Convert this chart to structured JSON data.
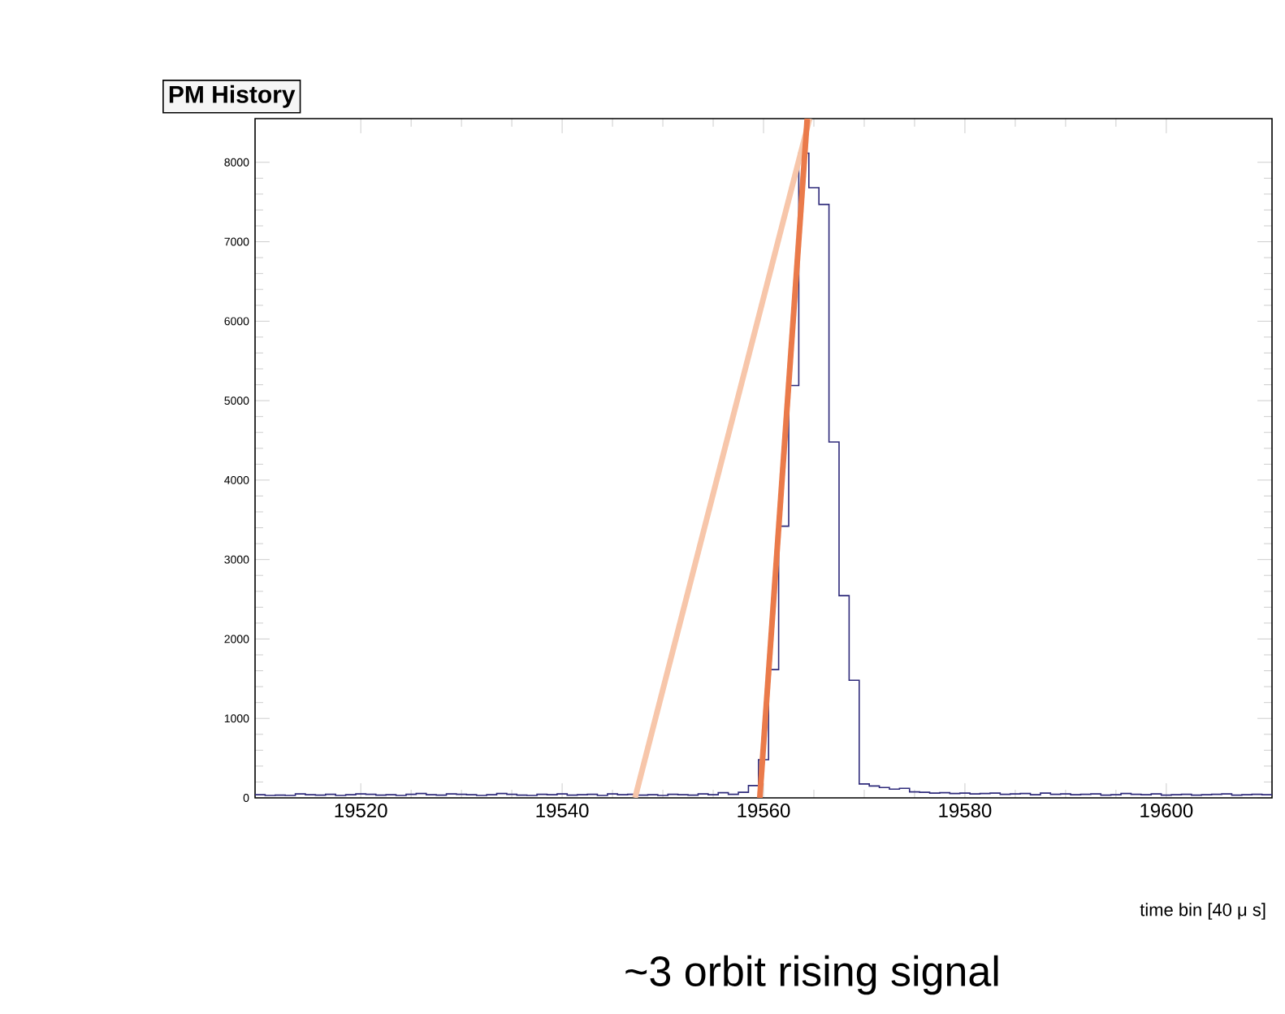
{
  "chart_data": {
    "type": "histogram",
    "title": "PM History",
    "xlabel": "time bin [40 μ s]",
    "annotations": [
      "~3 orbit rising signal"
    ],
    "color": "#2e2a7a",
    "bins": [
      19509.5,
      19510.5,
      19511.5,
      19512.5,
      19513.5,
      19514.5,
      19515.5,
      19516.5,
      19517.5,
      19518.5,
      19519.5,
      19520.5,
      19521.5,
      19522.5,
      19523.5,
      19524.5,
      19525.5,
      19526.5,
      19527.5,
      19528.5,
      19529.5,
      19530.5,
      19531.5,
      19532.5,
      19533.5,
      19534.5,
      19535.5,
      19536.5,
      19537.5,
      19538.5,
      19539.5,
      19540.5,
      19541.5,
      19542.5,
      19543.5,
      19544.5,
      19545.5,
      19546.5,
      19547.5,
      19548.5,
      19549.5,
      19550.5,
      19551.5,
      19552.5,
      19553.5,
      19554.5,
      19555.5,
      19556.5,
      19557.5,
      19558.5,
      19559.5,
      19560.5,
      19561.5,
      19562.5,
      19563.5,
      19564.5,
      19565.5,
      19566.5,
      19567.5,
      19568.5,
      19569.5,
      19570.5,
      19571.5,
      19572.5,
      19573.5,
      19574.5,
      19575.5,
      19576.5,
      19577.5,
      19578.5,
      19579.5,
      19580.5,
      19581.5,
      19582.5,
      19583.5,
      19584.5,
      19585.5,
      19586.5,
      19587.5,
      19588.5,
      19589.5,
      19590.5,
      19591.5,
      19592.5,
      19593.5,
      19594.5,
      19595.5,
      19596.5,
      19597.5,
      19598.5,
      19599.5,
      19600.5,
      19601.5,
      19602.5,
      19603.5,
      19604.5,
      19605.5,
      19606.5,
      19607.5,
      19608.5,
      19609.5,
      19610.5
    ],
    "values": [
      40,
      30,
      35,
      30,
      50,
      40,
      35,
      45,
      30,
      40,
      50,
      45,
      35,
      40,
      30,
      45,
      55,
      40,
      35,
      50,
      45,
      40,
      30,
      40,
      55,
      45,
      35,
      30,
      45,
      40,
      50,
      35,
      40,
      45,
      30,
      50,
      40,
      45,
      35,
      40,
      30,
      45,
      40,
      35,
      50,
      40,
      65,
      45,
      70,
      155,
      480,
      1615,
      3420,
      5190,
      8115,
      7680,
      7470,
      4480,
      2545,
      1480,
      175,
      150,
      130,
      110,
      120,
      75,
      70,
      60,
      65,
      55,
      60,
      50,
      55,
      60,
      45,
      50,
      55,
      40,
      60,
      45,
      50,
      40,
      45,
      50,
      35,
      40,
      55,
      45,
      40,
      50,
      35,
      40,
      45,
      35,
      40,
      45,
      50,
      35,
      40,
      45,
      40
    ],
    "series": [
      {
        "type": "line",
        "color": "#f7c6aa",
        "x": [
          19547.24,
          19564.57
        ],
        "values": [
          0,
          8550
        ]
      },
      {
        "type": "line",
        "color": "#ea7a4a",
        "x": [
          19559.63,
          19564.34
        ],
        "values": [
          0,
          8550
        ]
      }
    ],
    "xlim": [
      19509.5,
      19610.5
    ],
    "ylim": [
      0,
      8550
    ],
    "xticks": [
      19520,
      19540,
      19560,
      19580,
      19600
    ],
    "yticks": [
      0,
      1000,
      2000,
      3000,
      4000,
      5000,
      6000,
      7000,
      8000
    ]
  }
}
